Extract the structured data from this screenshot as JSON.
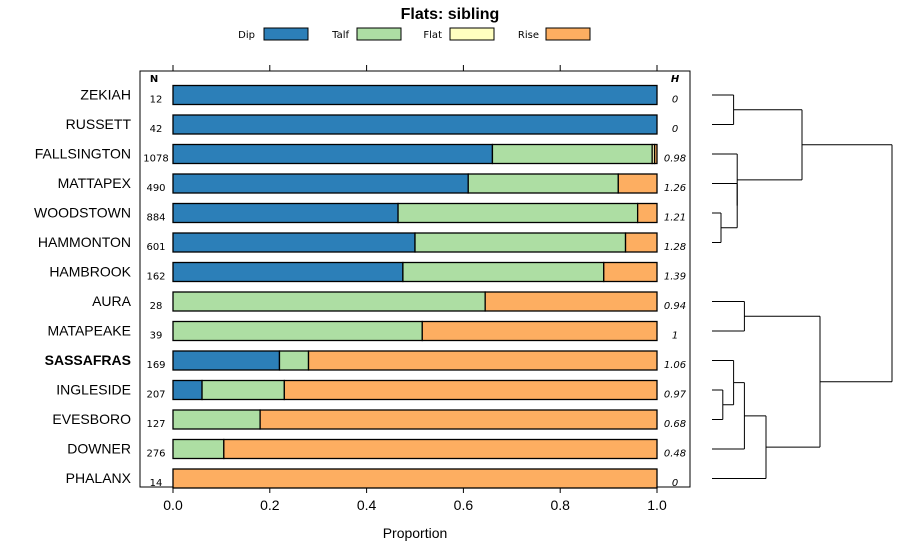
{
  "chart_data": {
    "type": "bar",
    "orientation": "horizontal",
    "stacked": true,
    "title": "Flats: sibling",
    "xlabel": "Proportion",
    "ylabel": "",
    "xlim": [
      0,
      1
    ],
    "x_ticks": [
      "0.0",
      "0.2",
      "0.4",
      "0.6",
      "0.8",
      "1.0"
    ],
    "n_header": "N",
    "h_header": "H",
    "legend": [
      {
        "name": "Dip",
        "color": "#2c7fb8"
      },
      {
        "name": "Talf",
        "color": "#addea3"
      },
      {
        "name": "Flat",
        "color": "#ffffc0"
      },
      {
        "name": "Rise",
        "color": "#fdae61"
      }
    ],
    "categories": [
      "ZEKIAH",
      "RUSSETT",
      "FALLSINGTON",
      "MATTAPEX",
      "WOODSTOWN",
      "HAMMONTON",
      "HAMBROOK",
      "AURA",
      "MATAPEAKE",
      "SASSAFRAS",
      "INGLESIDE",
      "EVESBORO",
      "DOWNER",
      "PHALANX"
    ],
    "highlighted": "SASSAFRAS",
    "n": [
      "12",
      "42",
      "1078",
      "490",
      "884",
      "601",
      "162",
      "28",
      "39",
      "169",
      "207",
      "127",
      "276",
      "14"
    ],
    "h": [
      "0",
      "0",
      "0.98",
      "1.26",
      "1.21",
      "1.28",
      "1.39",
      "0.94",
      "1",
      "1.06",
      "0.97",
      "0.68",
      "0.48",
      "0"
    ],
    "series": [
      {
        "name": "Dip",
        "values": [
          1.0,
          1.0,
          0.66,
          0.61,
          0.465,
          0.5,
          0.475,
          0.0,
          0.0,
          0.22,
          0.06,
          0.0,
          0.0,
          0.0
        ]
      },
      {
        "name": "Talf",
        "values": [
          0.0,
          0.0,
          0.33,
          0.31,
          0.495,
          0.435,
          0.415,
          0.645,
          0.515,
          0.06,
          0.17,
          0.18,
          0.105,
          0.0
        ]
      },
      {
        "name": "Flat",
        "values": [
          0.0,
          0.0,
          0.005,
          0.0,
          0.0,
          0.0,
          0.0,
          0.0,
          0.0,
          0.0,
          0.0,
          0.0,
          0.0,
          0.0
        ]
      },
      {
        "name": "Rise",
        "values": [
          0.0,
          0.0,
          0.005,
          0.08,
          0.04,
          0.065,
          0.11,
          0.355,
          0.485,
          0.72,
          0.77,
          0.82,
          0.895,
          1.0
        ]
      }
    ],
    "dendrogram": {
      "description": "hierarchical clustering of categories by composition",
      "merges": [
        [
          0,
          1,
          0.12
        ],
        [
          4,
          5,
          0.05
        ],
        [
          3,
          5,
          0.14
        ],
        [
          2,
          4,
          0.14
        ],
        [
          0,
          2,
          0.5
        ],
        [
          7,
          8,
          0.18
        ],
        [
          10,
          11,
          0.06
        ],
        [
          9,
          10,
          0.12
        ],
        [
          9,
          12,
          0.18
        ],
        [
          9,
          13,
          0.3
        ],
        [
          7,
          9,
          0.6
        ],
        [
          0,
          7,
          1.0
        ]
      ]
    }
  }
}
